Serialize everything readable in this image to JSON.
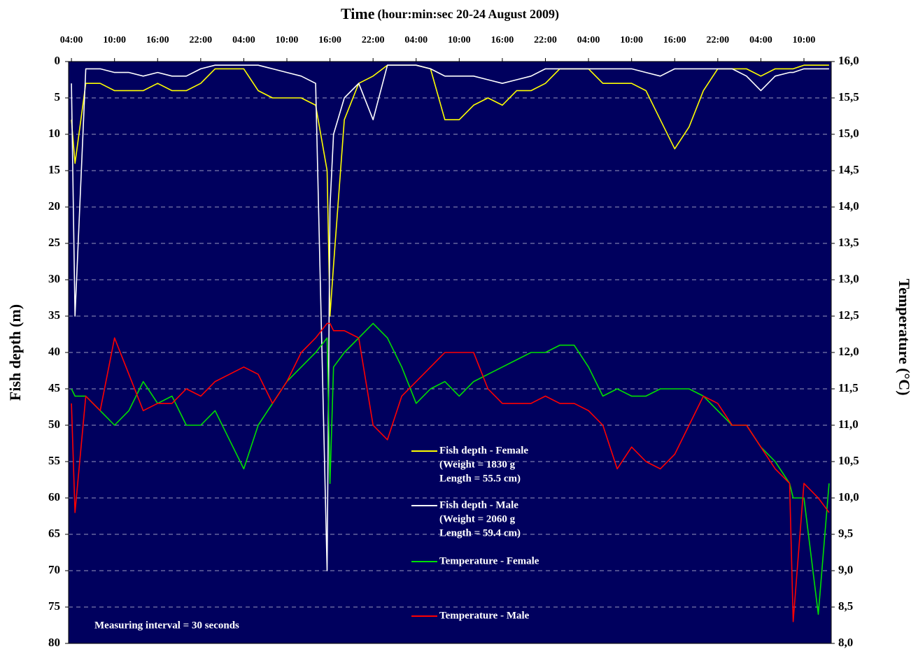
{
  "chart_data": {
    "type": "line",
    "title": "Time",
    "subtitle": "(hour:min:sec  20-24 August 2009)",
    "y_label": "Fish depth (m)",
    "y2_label": "Temperature (°C)",
    "annotation": "Measuring interval = 30 seconds",
    "y_reversed": true,
    "grid": true,
    "background": "#00005e",
    "x": [
      4,
      4.5,
      6,
      8,
      10,
      12,
      14,
      16,
      18,
      20,
      22,
      24,
      26,
      28,
      30,
      32,
      34,
      36,
      38,
      39.6,
      40,
      40.5,
      42,
      44,
      46,
      48,
      50,
      52,
      54,
      56,
      58,
      60,
      62,
      64,
      66,
      68,
      70,
      72,
      74,
      76,
      78,
      80,
      82,
      84,
      86,
      88,
      90,
      92,
      94,
      96,
      98,
      100,
      102,
      104,
      104.5,
      106,
      108,
      109.5
    ],
    "xlim": [
      3.6,
      109.8
    ],
    "xticks": [
      {
        "value": 4,
        "label": "04:00"
      },
      {
        "value": 10,
        "label": "10:00"
      },
      {
        "value": 16,
        "label": "16:00"
      },
      {
        "value": 22,
        "label": "22:00"
      },
      {
        "value": 28,
        "label": "04:00"
      },
      {
        "value": 34,
        "label": "10:00"
      },
      {
        "value": 40,
        "label": "16:00"
      },
      {
        "value": 46,
        "label": "22:00"
      },
      {
        "value": 52,
        "label": "04:00"
      },
      {
        "value": 58,
        "label": "10:00"
      },
      {
        "value": 64,
        "label": "16:00"
      },
      {
        "value": 70,
        "label": "22:00"
      },
      {
        "value": 76,
        "label": "04:00"
      },
      {
        "value": 82,
        "label": "10:00"
      },
      {
        "value": 88,
        "label": "16:00"
      },
      {
        "value": 94,
        "label": "22:00"
      },
      {
        "value": 100,
        "label": "04:00"
      },
      {
        "value": 106,
        "label": "10:00"
      }
    ],
    "ylim": [
      0,
      80
    ],
    "yticks": [
      0,
      5,
      10,
      15,
      20,
      25,
      30,
      35,
      40,
      45,
      50,
      55,
      60,
      65,
      70,
      75,
      80
    ],
    "y2lim": [
      16,
      8
    ],
    "y2ticks": [
      {
        "value": 16,
        "label": "16,0"
      },
      {
        "value": 15.5,
        "label": "15,5"
      },
      {
        "value": 15,
        "label": "15,0"
      },
      {
        "value": 14.5,
        "label": "14,5"
      },
      {
        "value": 14,
        "label": "14,0"
      },
      {
        "value": 13.5,
        "label": "13,5"
      },
      {
        "value": 13,
        "label": "13,0"
      },
      {
        "value": 12.5,
        "label": "12,5"
      },
      {
        "value": 12,
        "label": "12,0"
      },
      {
        "value": 11.5,
        "label": "11,5"
      },
      {
        "value": 11,
        "label": "11,0"
      },
      {
        "value": 10.5,
        "label": "10,5"
      },
      {
        "value": 10,
        "label": "10,0"
      },
      {
        "value": 9.5,
        "label": "9,5"
      },
      {
        "value": 9,
        "label": "9,0"
      },
      {
        "value": 8.5,
        "label": "8,5"
      },
      {
        "value": 8,
        "label": "8,0"
      }
    ],
    "series": [
      {
        "name": "Fish depth - Female",
        "details": [
          "(Weight = 1830 g",
          "Length = 55.5 cm)"
        ],
        "color": "#ffff00",
        "values": [
          8,
          14,
          3,
          3,
          4,
          4,
          4,
          3,
          4,
          4,
          3,
          1,
          1,
          1,
          4,
          5,
          5,
          5,
          6,
          15,
          35,
          28,
          8,
          3,
          2,
          0.5,
          0.5,
          0.5,
          1,
          8,
          8,
          6,
          5,
          6,
          4,
          4,
          3,
          1,
          1,
          1,
          3,
          3,
          3,
          4,
          8,
          12,
          9,
          4,
          1,
          1,
          1,
          2,
          1,
          1,
          1,
          0.5,
          0.5,
          0.5
        ]
      },
      {
        "name": "Fish depth - Male",
        "details": [
          "(Weight = 2060 g",
          "Length = 59.4 cm)"
        ],
        "color": "#ffffff",
        "values": [
          3,
          35,
          1,
          1,
          1.5,
          1.5,
          2,
          1.5,
          2,
          2,
          1,
          0.5,
          0.5,
          0.5,
          0.5,
          1,
          1.5,
          2,
          3,
          70,
          20,
          10,
          5,
          3,
          8,
          0.5,
          0.5,
          0.5,
          1,
          2,
          2,
          2,
          2.5,
          3,
          2.5,
          2,
          1,
          1,
          1,
          1,
          1,
          1,
          1,
          1.5,
          2,
          1,
          1,
          1,
          1,
          1,
          2,
          4,
          2,
          1.5,
          1.5,
          1,
          1,
          1
        ]
      },
      {
        "name": "Temperature - Female",
        "color": "#00e000",
        "axis": "y2",
        "values": [
          11.5,
          11.4,
          11.4,
          11.2,
          11.0,
          11.2,
          11.6,
          11.3,
          11.4,
          11.0,
          11.0,
          11.2,
          10.8,
          10.4,
          11.0,
          11.3,
          11.6,
          11.8,
          12.0,
          12.2,
          10.2,
          11.8,
          12.0,
          12.2,
          12.4,
          12.2,
          11.8,
          11.3,
          11.5,
          11.6,
          11.4,
          11.6,
          11.7,
          11.8,
          11.9,
          12.0,
          12.0,
          12.1,
          12.1,
          11.8,
          11.4,
          11.5,
          11.4,
          11.4,
          11.5,
          11.5,
          11.5,
          11.4,
          11.2,
          11.0,
          11.0,
          10.7,
          10.5,
          10.2,
          10.0,
          10.0,
          8.4,
          10.2
        ]
      },
      {
        "name": "Temperature - Male",
        "color": "#ff0000",
        "axis": "y2",
        "values": [
          11.3,
          9.8,
          11.4,
          11.2,
          12.2,
          11.7,
          11.2,
          11.3,
          11.3,
          11.5,
          11.4,
          11.6,
          11.7,
          11.8,
          11.7,
          11.3,
          11.6,
          12.0,
          12.2,
          12.4,
          12.4,
          12.3,
          12.3,
          12.2,
          11.0,
          10.8,
          11.4,
          11.6,
          11.8,
          12.0,
          12.0,
          12.0,
          11.5,
          11.3,
          11.3,
          11.3,
          11.4,
          11.3,
          11.3,
          11.2,
          11.0,
          10.4,
          10.7,
          10.5,
          10.4,
          10.6,
          11.0,
          11.4,
          11.3,
          11.0,
          11.0,
          10.7,
          10.4,
          10.2,
          8.3,
          10.2,
          10.0,
          9.8
        ]
      }
    ]
  }
}
